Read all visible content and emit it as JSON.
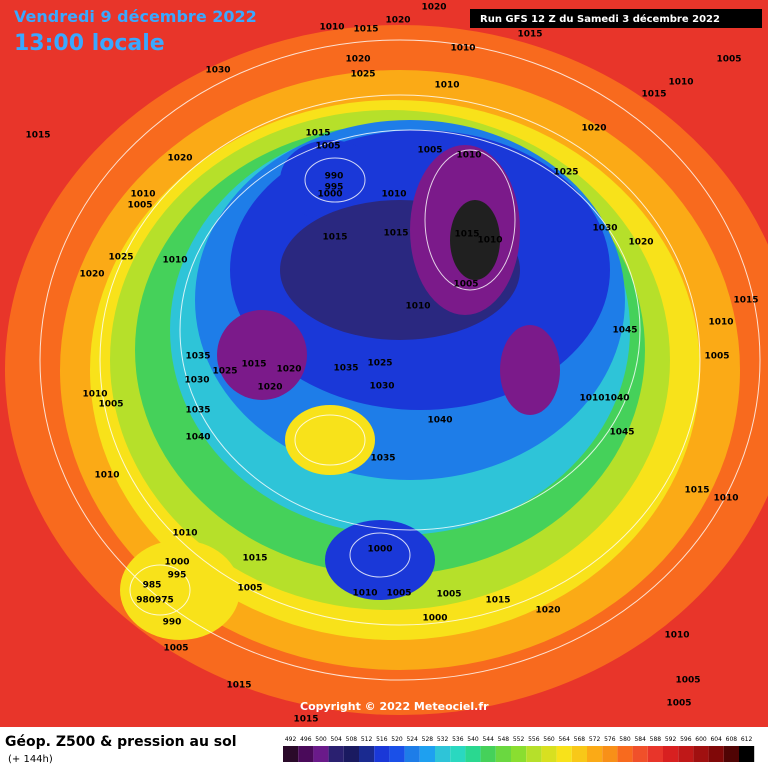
{
  "header": {
    "date": "Vendredi 9 décembre 2022",
    "time": "13:00 locale",
    "run": "Run GFS 12 Z du Samedi 3 décembre 2022"
  },
  "copyright": "Copyright © 2022 Meteociel.fr",
  "footer": {
    "title": "Géop. Z500 & pression au sol",
    "subtitle": "(+ 144h)"
  },
  "colorbar_ticks": [
    492,
    496,
    500,
    504,
    508,
    512,
    516,
    520,
    524,
    528,
    532,
    536,
    540,
    544,
    548,
    552,
    556,
    560,
    564,
    568,
    572,
    576,
    580,
    584,
    588,
    592,
    596,
    600,
    604,
    608,
    612
  ],
  "isobar_labels": [
    "1020",
    "1020",
    "1010",
    "1015",
    "1015",
    "1020",
    "1025",
    "1030",
    "1010",
    "1010",
    "1005",
    "1010",
    "1015",
    "1015",
    "1020",
    "1015",
    "1005",
    "1005",
    "1010",
    "1020",
    "1025",
    "990",
    "995",
    "1000",
    "1010",
    "1005",
    "1010",
    "1015",
    "1010",
    "1015",
    "1015",
    "1010",
    "1020",
    "1025",
    "1030",
    "1020",
    "1005",
    "1010",
    "1015",
    "1045",
    "1010",
    "1005",
    "1035",
    "1015",
    "1025",
    "1020",
    "1030",
    "1020",
    "1035",
    "1025",
    "1030",
    "1040",
    "1010",
    "1040",
    "1045",
    "1035",
    "1040",
    "1010",
    "1005",
    "1035",
    "1010",
    "1015",
    "1010",
    "1010",
    "1000",
    "1015",
    "1000",
    "995",
    "1005",
    "985",
    "980975",
    "990",
    "1005",
    "1010",
    "1005",
    "1005",
    "1015",
    "1020",
    "1000",
    "1010",
    "1005",
    "1015",
    "1005",
    "1015"
  ]
}
